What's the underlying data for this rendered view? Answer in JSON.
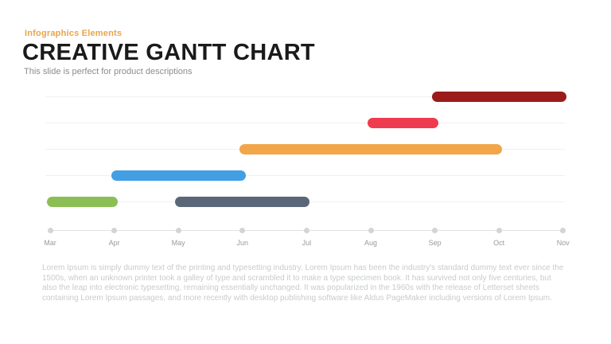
{
  "slide": {
    "eyebrow": "Infographics Elements",
    "title": "CREATIVE GANTT CHART",
    "subtitle": "This slide is perfect for product descriptions",
    "body_text": "Lorem Ipsum is simply dummy text of the printing and typesetting industry. Lorem Ipsum has been the industry's standard dummy text ever since the 1500s, when an unknown printer took a galley of type and scrambled it to make a type specimen book. It has survived not only five centuries, but also the leap into electronic typesetting, remaining essentially unchanged. It was popularized in the 1960s with the release of Letterset sheets containing Lorem Ipsum passages, and more recently with desktop publishing software like Aldus PageMaker including versions of Lorem Ipsum."
  },
  "colors": {
    "eyebrow": "#E9A44C",
    "title": "#1A1A1A",
    "subtitle": "#8C8C8C",
    "body_text": "#C9CBCD",
    "gridline": "#F0F0F0",
    "axis_line": "#E2E2E2",
    "axis_dot": "#D4D4D4",
    "month_label": "#9A9A9A"
  },
  "chart_data": {
    "type": "gantt",
    "title": "",
    "grid": true,
    "legend": false,
    "timeline_months": [
      "Mar",
      "Apr",
      "May",
      "Jun",
      "Jul",
      "Aug",
      "Sep",
      "Oct",
      "Nov"
    ],
    "row_count": 5,
    "bars": [
      {
        "row": 1,
        "start": "Sep",
        "end": "Nov",
        "color": "#9B1B1B"
      },
      {
        "row": 2,
        "start": "Aug",
        "end": "Sep",
        "color": "#EF3B4F"
      },
      {
        "row": 3,
        "start": "Jun",
        "end": "Oct",
        "color": "#F2A649"
      },
      {
        "row": 4,
        "start": "Apr",
        "end": "Jun",
        "color": "#429FE3"
      },
      {
        "row": 5,
        "start": "Mar",
        "end": "Apr",
        "color": "#8BBF55"
      },
      {
        "row": 5,
        "start": "May",
        "end": "Jul",
        "color": "#5A6778"
      }
    ]
  }
}
